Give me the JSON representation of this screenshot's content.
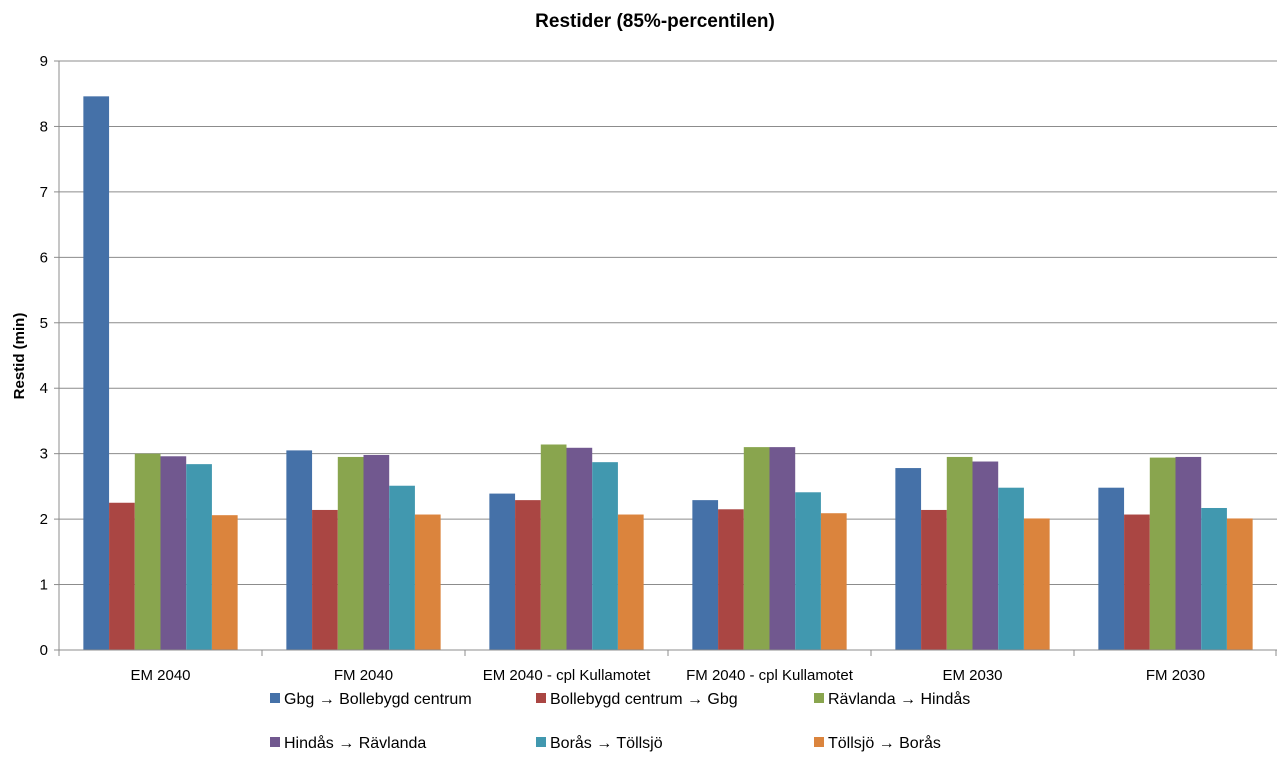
{
  "chart_data": {
    "type": "bar",
    "title": "Restider (85%-percentilen)",
    "xlabel": "",
    "ylabel": "Restid (min)",
    "ylim": [
      0,
      9
    ],
    "yticks": [
      "0",
      "1",
      "2",
      "3",
      "4",
      "5",
      "6",
      "7",
      "8",
      "9"
    ],
    "grid": true,
    "legend_position": "bottom",
    "categories": [
      "EM 2040",
      "FM 2040",
      "EM 2040 - cpl Kullamotet",
      "FM 2040 - cpl Kullamotet",
      "EM 2030",
      "FM 2030"
    ],
    "series": [
      {
        "name": "Gbg → Bollebygd centrum",
        "color": "#4571A8",
        "values": [
          8.46,
          3.05,
          2.39,
          2.29,
          2.78,
          2.48
        ]
      },
      {
        "name": "Bollebygd centrum → Gbg",
        "color": "#AA4643",
        "values": [
          2.25,
          2.14,
          2.29,
          2.15,
          2.14,
          2.07
        ]
      },
      {
        "name": "Rävlanda → Hindås",
        "color": "#89A54E",
        "values": [
          3.0,
          2.95,
          3.14,
          3.1,
          2.95,
          2.94
        ]
      },
      {
        "name": "Hindås → Rävlanda",
        "color": "#71588F",
        "values": [
          2.96,
          2.98,
          3.09,
          3.1,
          2.88,
          2.95
        ]
      },
      {
        "name": "Borås → Töllsjö",
        "color": "#4198AF",
        "values": [
          2.84,
          2.51,
          2.87,
          2.41,
          2.48,
          2.17
        ]
      },
      {
        "name": "Töllsjö → Borås",
        "color": "#DB843D",
        "values": [
          2.06,
          2.07,
          2.07,
          2.09,
          2.01,
          2.01
        ]
      }
    ]
  }
}
